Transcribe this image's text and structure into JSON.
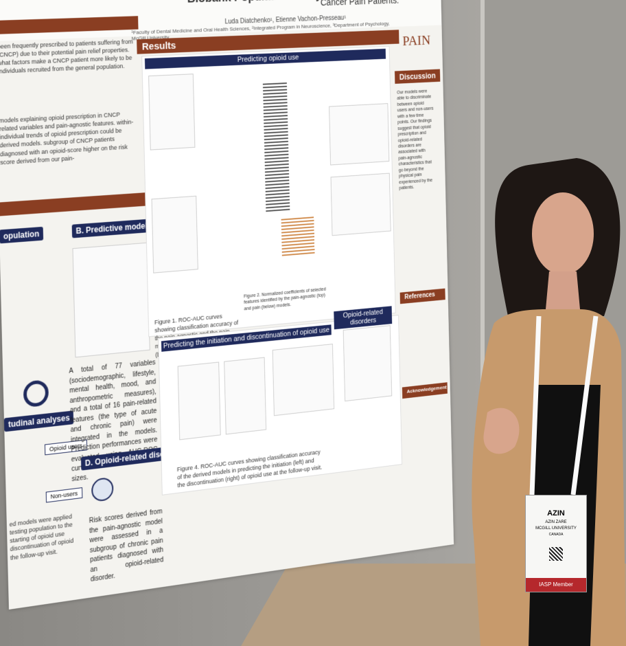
{
  "poster": {
    "title": "Biobank Population study",
    "title_fragment": "Cancer Pain Patients:",
    "authors": "Luda Diatchenko¹, Etienne Vachon-Presseau¹",
    "affiliations": "¹Faculty of Dental Medicine and Oral Health Sciences, ²Integrated Program in Neuroscience, ³Department of Psychology, McGill University",
    "logo": "PAIN",
    "intro_text": "been frequently prescribed to patients suffering from (CNCP) due to their potential pain relief properties. what factors make a CNCP patient more likely to be individuals recruited from the general population.",
    "aims_text": "models explaining opioid prescription in CNCP related variables and pain-agnostic features. within-individual trends of opioid prescription could be derived models. subgroup of CNCP patients diagnosed with an opioid-score higher on the risk score derived from our pain-",
    "section_population": "opulation",
    "section_models": "B. Predictive models",
    "section_longitudinal": "tudinal analyses",
    "section_disorders": "D. Opioid-related disorders",
    "opioid_users": "Opioid users",
    "non_users": "Non-users",
    "methods_text": "A total of 77 variables (sociodemographic, lifestyle, mental health, mood, and anthropometric measures), and a total of 16 pain-related features (the type of acute and chronic pain) were integrated in the models. Prediction performances were evaluated using AUC-ROC curves and Cohen's d effect sizes.",
    "disorders_text": "Risk scores derived from the pain-agnostic model were assessed in a subgroup of chronic pain patients diagnosed with an opioid-related disorder.",
    "longitudinal_text": "ed models were applied testing population to the starting of opioid use discontinuation of opioid the follow-up visit.",
    "results": "Results",
    "predicting_use": "Predicting opioid use",
    "predicting_initiation": "Predicting the initiation and discontinuation of opioid use",
    "opioid_disorders": "Opioid-related disorders",
    "figure1": "Figure 1. ROC-AUC curves showing classification accuracy of the pain-agnostic and the pain models in the train (top) and test (below).",
    "figure2": "Figure 2. Normalized coefficients of selected features identified by the pain-agnostic (top) and pain (below) models.",
    "figure4": "Figure 4. ROC-AUC curves showing classification accuracy of the derived models in predicting the initiation (left) and the discontinuation (right) of opioid use at the follow-up visit.",
    "discussion": "Discussion",
    "discussion_text": "Our models were able to discriminate between opioid users and non-users with a few time points. Our findings suggest that opioid prescription and opioid-related disorders are associated with pain-agnostic characteristics that go beyond the physical pain experienced by the patients.",
    "references": "References",
    "acknowledgement": "Acknowledgement"
  },
  "badge": {
    "first_name": "AZIN",
    "full_name": "AZIN ZARE",
    "institution": "MCGILL UNIVERSITY",
    "country": "CANADA",
    "member": "IASP Member"
  }
}
